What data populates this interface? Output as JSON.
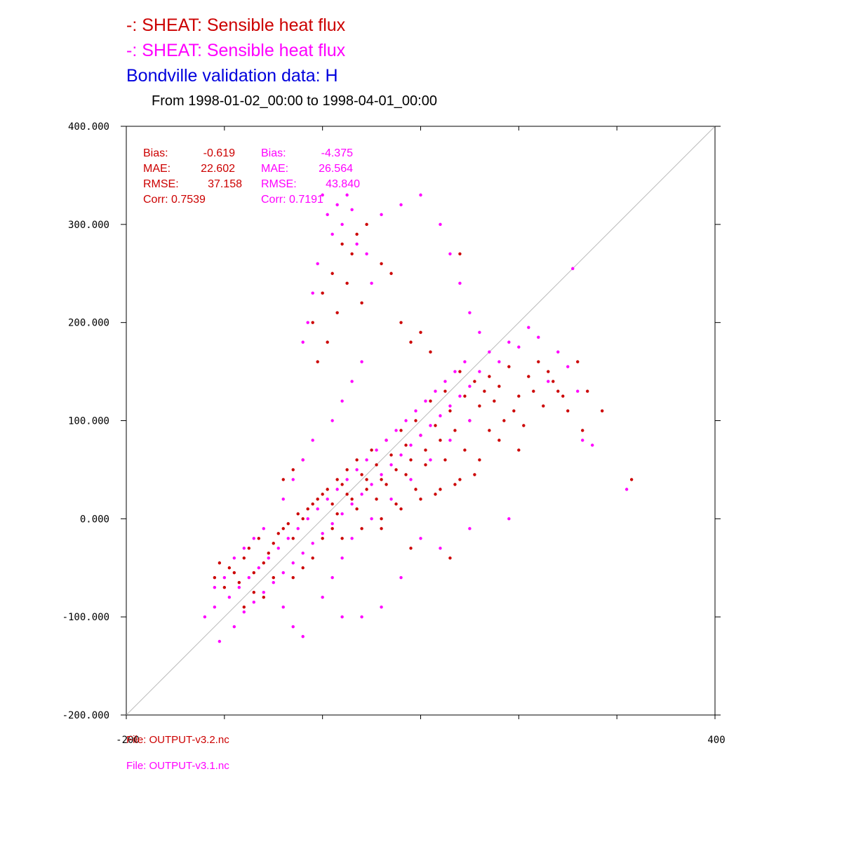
{
  "colors": {
    "series1": "#cc0000",
    "series2": "#ff00ff",
    "obs": "#0000dd",
    "axis": "#000000",
    "diag": "#bbbbbb"
  },
  "titles": {
    "line1": "-:  SHEAT: Sensible heat flux",
    "line2": "-:  SHEAT: Sensible heat flux",
    "line3": "Bondville validation data:  H",
    "line4": "From 1998-01-02_00:00 to 1998-04-01_00:00"
  },
  "files": {
    "file1": "File: OUTPUT-v3.2.nc",
    "file2": "File: OUTPUT-v3.1.nc"
  },
  "chart_data": {
    "type": "scatter",
    "title": "Bondville validation data:  H",
    "xlim": [
      -200,
      400
    ],
    "ylim": [
      -200,
      400
    ],
    "x_ticks": [
      -200,
      -100,
      0,
      100,
      200,
      300,
      400
    ],
    "x_tick_labels": [
      {
        "value": -200,
        "label": "-200"
      },
      {
        "value": 400,
        "label": "400"
      }
    ],
    "y_ticks": [
      {
        "value": 400,
        "label": "400.000"
      },
      {
        "value": 300,
        "label": "300.000"
      },
      {
        "value": 200,
        "label": "200.000"
      },
      {
        "value": 100,
        "label": "100.000"
      },
      {
        "value": 0,
        "label": "0.000"
      },
      {
        "value": -100,
        "label": "-100.000"
      },
      {
        "value": -200,
        "label": "-200.000"
      }
    ],
    "reference_line": "1:1",
    "stats": [
      {
        "series": "OUTPUT-v3.2.nc",
        "color": "#cc0000",
        "bias_label": "Bias:",
        "bias": "-0.619",
        "mae_label": "MAE:",
        "mae": "22.602",
        "rmse_label": "RMSE:",
        "rmse": "37.158",
        "corr_label": "Corr:",
        "corr": "0.7539"
      },
      {
        "series": "OUTPUT-v3.1.nc",
        "color": "#ff00ff",
        "bias_label": "Bias:",
        "bias": "-4.375",
        "mae_label": "MAE:",
        "mae": "26.564",
        "rmse_label": "RMSE:",
        "rmse": "43.840",
        "corr_label": "Corr:",
        "corr": "0.7191"
      }
    ],
    "series": [
      {
        "color": "#cc0000",
        "points": [
          [
            -110,
            -60
          ],
          [
            -105,
            -45
          ],
          [
            -95,
            -50
          ],
          [
            -90,
            -55
          ],
          [
            -100,
            -70
          ],
          [
            -80,
            -40
          ],
          [
            -85,
            -65
          ],
          [
            -75,
            -30
          ],
          [
            -70,
            -55
          ],
          [
            -65,
            -20
          ],
          [
            -60,
            -45
          ],
          [
            -55,
            -35
          ],
          [
            -50,
            -25
          ],
          [
            -45,
            -15
          ],
          [
            -40,
            -10
          ],
          [
            -35,
            -5
          ],
          [
            -30,
            -20
          ],
          [
            -25,
            5
          ],
          [
            -20,
            0
          ],
          [
            -15,
            10
          ],
          [
            -10,
            15
          ],
          [
            -5,
            20
          ],
          [
            0,
            25
          ],
          [
            5,
            30
          ],
          [
            10,
            15
          ],
          [
            15,
            40
          ],
          [
            20,
            35
          ],
          [
            25,
            50
          ],
          [
            30,
            20
          ],
          [
            35,
            60
          ],
          [
            40,
            45
          ],
          [
            45,
            30
          ],
          [
            50,
            70
          ],
          [
            55,
            55
          ],
          [
            60,
            40
          ],
          [
            65,
            80
          ],
          [
            70,
            65
          ],
          [
            75,
            50
          ],
          [
            80,
            90
          ],
          [
            85,
            75
          ],
          [
            90,
            60
          ],
          [
            95,
            100
          ],
          [
            100,
            85
          ],
          [
            105,
            70
          ],
          [
            110,
            120
          ],
          [
            115,
            95
          ],
          [
            120,
            80
          ],
          [
            125,
            130
          ],
          [
            130,
            110
          ],
          [
            135,
            90
          ],
          [
            140,
            150
          ],
          [
            145,
            125
          ],
          [
            150,
            100
          ],
          [
            155,
            140
          ],
          [
            160,
            115
          ],
          [
            165,
            130
          ],
          [
            170,
            145
          ],
          [
            175,
            120
          ],
          [
            180,
            135
          ],
          [
            190,
            155
          ],
          [
            200,
            125
          ],
          [
            210,
            145
          ],
          [
            220,
            160
          ],
          [
            230,
            150
          ],
          [
            240,
            130
          ],
          [
            250,
            110
          ],
          [
            260,
            160
          ],
          [
            265,
            90
          ],
          [
            270,
            130
          ],
          [
            285,
            110
          ],
          [
            315,
            40
          ],
          [
            -10,
            200
          ],
          [
            0,
            230
          ],
          [
            10,
            250
          ],
          [
            20,
            280
          ],
          [
            30,
            270
          ],
          [
            35,
            290
          ],
          [
            45,
            300
          ],
          [
            25,
            240
          ],
          [
            15,
            210
          ],
          [
            5,
            180
          ],
          [
            -5,
            160
          ],
          [
            40,
            220
          ],
          [
            60,
            260
          ],
          [
            70,
            250
          ],
          [
            80,
            200
          ],
          [
            90,
            180
          ],
          [
            100,
            190
          ],
          [
            110,
            170
          ],
          [
            140,
            270
          ],
          [
            -30,
            50
          ],
          [
            -40,
            40
          ],
          [
            -20,
            60
          ],
          [
            20,
            -20
          ],
          [
            40,
            -10
          ],
          [
            60,
            0
          ],
          [
            80,
            10
          ],
          [
            100,
            20
          ],
          [
            120,
            30
          ],
          [
            140,
            40
          ],
          [
            160,
            60
          ],
          [
            180,
            80
          ],
          [
            200,
            70
          ],
          [
            130,
            -40
          ],
          [
            90,
            -30
          ],
          [
            60,
            -10
          ],
          [
            -60,
            -80
          ],
          [
            -50,
            -60
          ],
          [
            -70,
            -75
          ],
          [
            -80,
            -90
          ],
          [
            -30,
            -60
          ],
          [
            -20,
            -50
          ],
          [
            -10,
            -40
          ],
          [
            0,
            -20
          ],
          [
            10,
            -10
          ],
          [
            15,
            5
          ],
          [
            25,
            25
          ],
          [
            35,
            10
          ],
          [
            45,
            40
          ],
          [
            55,
            20
          ],
          [
            65,
            35
          ],
          [
            75,
            15
          ],
          [
            85,
            45
          ],
          [
            95,
            30
          ],
          [
            105,
            55
          ],
          [
            115,
            25
          ],
          [
            125,
            60
          ],
          [
            135,
            35
          ],
          [
            145,
            70
          ],
          [
            155,
            45
          ],
          [
            170,
            90
          ],
          [
            185,
            100
          ],
          [
            195,
            110
          ],
          [
            205,
            95
          ],
          [
            215,
            130
          ],
          [
            225,
            115
          ],
          [
            235,
            140
          ],
          [
            245,
            125
          ]
        ]
      },
      {
        "color": "#ff00ff",
        "points": [
          [
            -120,
            -100
          ],
          [
            -110,
            -90
          ],
          [
            -105,
            -125
          ],
          [
            -95,
            -80
          ],
          [
            -90,
            -110
          ],
          [
            -85,
            -70
          ],
          [
            -80,
            -95
          ],
          [
            -75,
            -60
          ],
          [
            -70,
            -85
          ],
          [
            -65,
            -50
          ],
          [
            -60,
            -75
          ],
          [
            -55,
            -40
          ],
          [
            -50,
            -65
          ],
          [
            -45,
            -30
          ],
          [
            -40,
            -55
          ],
          [
            -35,
            -20
          ],
          [
            -30,
            -45
          ],
          [
            -25,
            -10
          ],
          [
            -20,
            -35
          ],
          [
            -15,
            0
          ],
          [
            -10,
            -25
          ],
          [
            -5,
            10
          ],
          [
            0,
            -15
          ],
          [
            5,
            20
          ],
          [
            10,
            -5
          ],
          [
            15,
            30
          ],
          [
            20,
            5
          ],
          [
            25,
            40
          ],
          [
            30,
            15
          ],
          [
            35,
            50
          ],
          [
            40,
            25
          ],
          [
            45,
            60
          ],
          [
            50,
            35
          ],
          [
            55,
            70
          ],
          [
            60,
            45
          ],
          [
            65,
            80
          ],
          [
            70,
            55
          ],
          [
            75,
            90
          ],
          [
            80,
            65
          ],
          [
            85,
            100
          ],
          [
            90,
            75
          ],
          [
            95,
            110
          ],
          [
            100,
            85
          ],
          [
            105,
            120
          ],
          [
            110,
            95
          ],
          [
            115,
            130
          ],
          [
            120,
            105
          ],
          [
            125,
            140
          ],
          [
            130,
            115
          ],
          [
            135,
            150
          ],
          [
            140,
            125
          ],
          [
            145,
            160
          ],
          [
            150,
            135
          ],
          [
            160,
            150
          ],
          [
            170,
            170
          ],
          [
            180,
            160
          ],
          [
            190,
            180
          ],
          [
            200,
            175
          ],
          [
            210,
            195
          ],
          [
            220,
            185
          ],
          [
            230,
            140
          ],
          [
            240,
            170
          ],
          [
            250,
            155
          ],
          [
            255,
            255
          ],
          [
            260,
            130
          ],
          [
            265,
            80
          ],
          [
            275,
            75
          ],
          [
            310,
            30
          ],
          [
            0,
            330
          ],
          [
            5,
            310
          ],
          [
            10,
            290
          ],
          [
            15,
            320
          ],
          [
            20,
            300
          ],
          [
            25,
            330
          ],
          [
            30,
            315
          ],
          [
            35,
            280
          ],
          [
            -5,
            260
          ],
          [
            -10,
            230
          ],
          [
            -15,
            200
          ],
          [
            -20,
            180
          ],
          [
            45,
            270
          ],
          [
            50,
            240
          ],
          [
            60,
            310
          ],
          [
            80,
            320
          ],
          [
            100,
            330
          ],
          [
            120,
            300
          ],
          [
            130,
            270
          ],
          [
            140,
            240
          ],
          [
            150,
            210
          ],
          [
            160,
            190
          ],
          [
            -40,
            20
          ],
          [
            -30,
            40
          ],
          [
            -20,
            60
          ],
          [
            -10,
            80
          ],
          [
            10,
            100
          ],
          [
            20,
            120
          ],
          [
            30,
            140
          ],
          [
            40,
            160
          ],
          [
            -60,
            -10
          ],
          [
            -70,
            -20
          ],
          [
            -80,
            -30
          ],
          [
            -90,
            -40
          ],
          [
            -100,
            -60
          ],
          [
            -110,
            -70
          ],
          [
            -40,
            -90
          ],
          [
            -30,
            -110
          ],
          [
            -20,
            -120
          ],
          [
            0,
            -80
          ],
          [
            10,
            -60
          ],
          [
            20,
            -40
          ],
          [
            30,
            -20
          ],
          [
            50,
            0
          ],
          [
            70,
            20
          ],
          [
            90,
            40
          ],
          [
            110,
            60
          ],
          [
            130,
            80
          ],
          [
            150,
            100
          ],
          [
            120,
            -30
          ],
          [
            100,
            -20
          ],
          [
            80,
            -60
          ],
          [
            60,
            -90
          ],
          [
            40,
            -100
          ],
          [
            20,
            -100
          ],
          [
            190,
            0
          ],
          [
            150,
            -10
          ]
        ]
      }
    ]
  }
}
